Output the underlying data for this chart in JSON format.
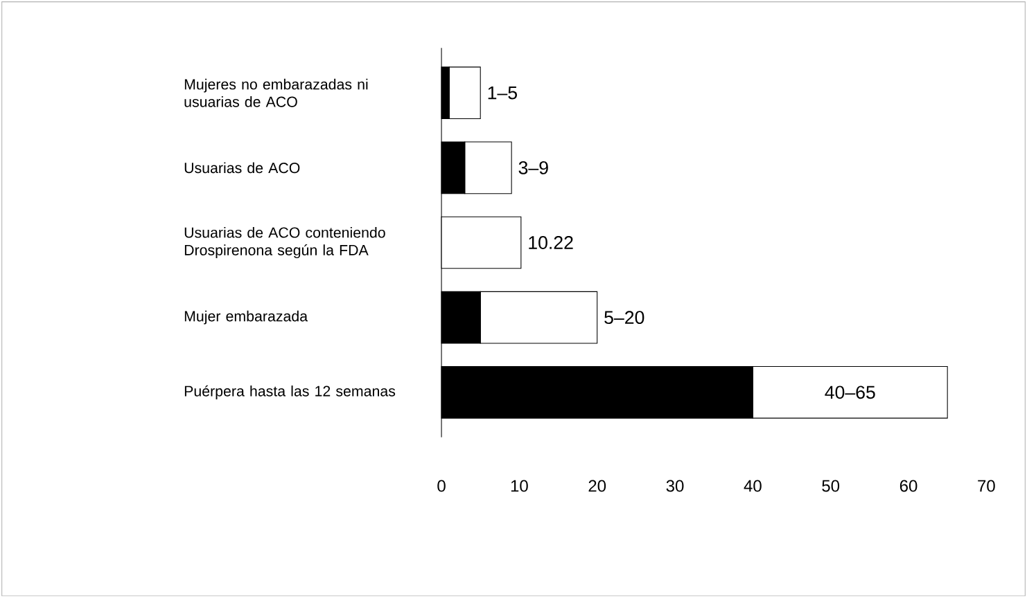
{
  "chart_data": {
    "type": "bar",
    "orientation": "horizontal",
    "stacked": true,
    "categories": [
      "Mujeres no embarazadas ni usuarias de ACO",
      "Usuarias de ACO",
      "Usuarias de ACO conteniendo Drospirenona según la FDA",
      "Mujer embarazada",
      "Puérpera hasta las 12 semanas"
    ],
    "series": [
      {
        "color": "#000000",
        "values": [
          1,
          3,
          0,
          5,
          40
        ]
      },
      {
        "color": "#ffffff",
        "values": [
          4,
          6,
          10.22,
          15,
          25
        ],
        "value_labels": [
          "1–5",
          "3–9",
          "10.22",
          "5–20",
          "40–65"
        ]
      }
    ],
    "xlim": [
      0,
      70
    ],
    "xticks": [
      0,
      10,
      20,
      30,
      40,
      50,
      60,
      70
    ]
  }
}
